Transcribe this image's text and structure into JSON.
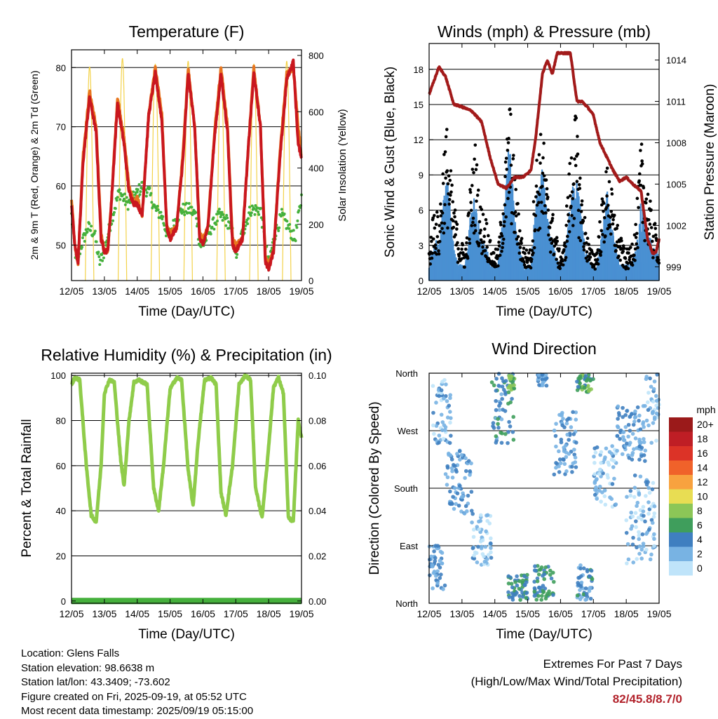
{
  "time_ticks": [
    "12/05",
    "13/05",
    "14/05",
    "15/05",
    "16/05",
    "17/05",
    "18/05",
    "19/05"
  ],
  "colors": {
    "temp_2m": "#e8761f",
    "temp_9m": "#c9171e",
    "dewpoint": "#45b03c",
    "solar": "#f3d24a",
    "wind": "#4a90d2",
    "gust": "#000000",
    "pressure": "#a21a1a",
    "humidity": "#8fcc4a",
    "precip": "#45b03c",
    "extremes_value": "#b2222b"
  },
  "chart_data": [
    {
      "id": "temperature",
      "type": "line",
      "title": "Temperature (F)",
      "xlabel": "Time (Day/UTC)",
      "ylabel": "2m & 9m T (Red, Orange) & 2m Td (Green)",
      "ylabel_right": "Solar Insolation (Yellow)",
      "ylim": [
        44,
        83
      ],
      "yticks": [
        50,
        60,
        70,
        80
      ],
      "ylim_right": [
        0,
        820
      ],
      "yticks_right": [
        0,
        200,
        400,
        600,
        800
      ],
      "grid": true,
      "series": [
        {
          "axis": "left",
          "x": [
            0,
            0.1,
            0.2,
            0.35,
            0.55,
            0.75,
            0.9,
            1,
            1.1,
            1.2,
            1.4,
            1.6,
            1.75,
            1.9,
            2,
            2.15,
            2.35,
            2.55,
            2.75,
            2.9,
            3,
            3.2,
            3.4,
            3.55,
            3.75,
            3.9,
            4,
            4.15,
            4.35,
            4.55,
            4.75,
            4.9,
            5,
            5.2,
            5.4,
            5.55,
            5.75,
            5.9,
            6,
            6.15,
            6.35,
            6.55,
            6.75,
            6.9,
            7
          ],
          "values": [
            58,
            50,
            47,
            65,
            76,
            70,
            52,
            49,
            49,
            56,
            75,
            68,
            60,
            57,
            58,
            55,
            72,
            80,
            72,
            53,
            52,
            53,
            66,
            80,
            70,
            52,
            51,
            53,
            69,
            80,
            70,
            51,
            50,
            51,
            68,
            80,
            70,
            48,
            47,
            49,
            66,
            79,
            80,
            70,
            65
          ]
        },
        {
          "axis": "left",
          "x": [
            0,
            0.1,
            0.2,
            0.35,
            0.55,
            0.75,
            0.9,
            1,
            1.1,
            1.2,
            1.4,
            1.6,
            1.75,
            1.9,
            2,
            2.15,
            2.35,
            2.55,
            2.75,
            2.9,
            3,
            3.2,
            3.4,
            3.55,
            3.75,
            3.9,
            4,
            4.15,
            4.35,
            4.55,
            4.75,
            4.9,
            5,
            5.2,
            5.4,
            5.55,
            5.75,
            5.9,
            6,
            6.15,
            6.35,
            6.55,
            6.75,
            6.9,
            7
          ],
          "values": [
            57,
            50,
            47,
            64,
            75,
            69,
            51,
            49,
            49,
            56,
            74,
            67,
            59,
            57,
            57,
            55,
            72,
            79,
            71,
            53,
            51,
            53,
            65,
            79,
            70,
            51,
            50,
            53,
            68,
            79,
            69,
            50,
            49,
            51,
            68,
            79,
            70,
            47,
            46,
            49,
            65,
            78,
            81,
            67,
            65
          ]
        },
        {
          "axis": "left",
          "x": [
            0,
            0.15,
            0.3,
            0.5,
            0.7,
            0.85,
            1,
            1.2,
            1.45,
            1.7,
            1.9,
            2.15,
            2.35,
            2.55,
            2.75,
            2.9,
            3,
            3.15,
            3.35,
            3.6,
            3.8,
            3.9,
            4,
            4.25,
            4.5,
            4.75,
            4.9,
            5,
            5.2,
            5.45,
            5.75,
            5.9,
            6,
            6.2,
            6.4,
            6.6,
            6.8,
            7
          ],
          "values": [
            55,
            47,
            50,
            53,
            52,
            47,
            49,
            54,
            59,
            57,
            58,
            60,
            59,
            56,
            55,
            52,
            52,
            54,
            56,
            56,
            55,
            50,
            50,
            53,
            55,
            54,
            52,
            48,
            52,
            56,
            56,
            50,
            47,
            52,
            55,
            53,
            51,
            58
          ]
        },
        {
          "axis": "right",
          "x": [
            0.45,
            0.55,
            0.65,
            1.45,
            1.55,
            1.65,
            2.45,
            2.55,
            2.65,
            3.45,
            3.55,
            3.65,
            4.45,
            4.55,
            4.65,
            5.45,
            5.55,
            5.65,
            6.45,
            6.55,
            6.65
          ],
          "values": [
            0,
            760,
            0,
            0,
            790,
            0,
            0,
            770,
            0,
            0,
            780,
            0,
            0,
            760,
            0,
            0,
            770,
            0,
            0,
            780,
            0
          ]
        }
      ]
    },
    {
      "id": "winds",
      "type": "line",
      "title": "Winds (mph) & Pressure (mb)",
      "xlabel": "Time (Day/UTC)",
      "ylabel": "Sonic Wind & Gust (Blue, Black)",
      "ylabel_right": "Station Pressure (Maroon)",
      "ylim": [
        0,
        20.2
      ],
      "yticks": [
        0,
        3,
        6,
        9,
        12,
        15,
        18
      ],
      "ylim_right": [
        998,
        1015.2
      ],
      "yticks_right": [
        999,
        1002,
        1005,
        1008,
        1011,
        1014
      ],
      "grid": true,
      "series": [
        {
          "axis": "left",
          "x": [
            0,
            0.15,
            0.3,
            0.45,
            0.55,
            0.7,
            0.9,
            1.1,
            1.25,
            1.4,
            1.55,
            1.75,
            1.9,
            2.1,
            2.3,
            2.45,
            2.6,
            2.75,
            2.9,
            3.1,
            3.25,
            3.45,
            3.6,
            3.8,
            3.95,
            4.1,
            4.25,
            4.45,
            4.6,
            4.75,
            4.9,
            5.1,
            5.25,
            5.45,
            5.6,
            5.8,
            5.95,
            6.1,
            6.3,
            6.45,
            6.6,
            6.8,
            7
          ],
          "values": [
            1,
            3,
            2,
            6,
            7,
            3,
            1,
            1,
            4,
            6,
            3,
            2,
            1,
            1,
            5,
            9,
            4,
            2,
            1,
            1,
            5,
            7,
            4,
            2,
            1,
            1,
            4,
            7,
            5,
            2,
            1,
            1,
            3,
            6,
            3,
            1,
            1,
            1,
            2,
            5,
            4,
            2,
            2
          ]
        },
        {
          "axis": "left",
          "x": [
            0,
            0.15,
            0.3,
            0.45,
            0.55,
            0.7,
            0.9,
            1.1,
            1.25,
            1.4,
            1.55,
            1.75,
            1.9,
            2.1,
            2.3,
            2.45,
            2.6,
            2.75,
            2.9,
            3.1,
            3.25,
            3.45,
            3.6,
            3.8,
            3.95,
            4.1,
            4.25,
            4.45,
            4.6,
            4.75,
            4.9,
            5.1,
            5.25,
            5.45,
            5.6,
            5.8,
            5.95,
            6.1,
            6.3,
            6.45,
            6.6,
            6.8,
            7
          ],
          "values": [
            2,
            5,
            4,
            9,
            10,
            6,
            3,
            2,
            6,
            9,
            5,
            4,
            2,
            2,
            7,
            12,
            7,
            4,
            2,
            2,
            8,
            10,
            6,
            4,
            2,
            2,
            7,
            11,
            7,
            4,
            2,
            2,
            5,
            8,
            5,
            3,
            2,
            2,
            4,
            9,
            7,
            4,
            3
          ]
        },
        {
          "axis": "right",
          "x": [
            0,
            0.15,
            0.3,
            0.5,
            0.75,
            1,
            1.3,
            1.6,
            1.85,
            2.1,
            2.35,
            2.6,
            2.85,
            3.1,
            3.25,
            3.45,
            3.6,
            3.75,
            3.9,
            4.1,
            4.3,
            4.5,
            4.65,
            4.85,
            5,
            5.2,
            5.4,
            5.6,
            5.8,
            6.0,
            6.2,
            6.45,
            6.65,
            6.8,
            6.9,
            7
          ],
          "values": [
            1011.5,
            1012.5,
            1013.5,
            1012.8,
            1010.8,
            1010.6,
            1010.3,
            1009.5,
            1007,
            1005,
            1004.7,
            1005.5,
            1005.5,
            1006,
            1008.5,
            1013,
            1014,
            1013,
            1014.5,
            1014.5,
            1014.5,
            1011,
            1011,
            1010.5,
            1010,
            1008,
            1007,
            1006,
            1005.2,
            1005.5,
            1005,
            1004.5,
            1001,
            1000,
            1000,
            1001
          ]
        }
      ]
    },
    {
      "id": "humidity",
      "type": "line",
      "title": "Relative Humidity (%) & Precipitation (in)",
      "xlabel": "Time (Day/UTC)",
      "ylabel": "Percent & Total Rainfall",
      "ylim": [
        -1,
        101
      ],
      "yticks": [
        0,
        20,
        40,
        60,
        80,
        100
      ],
      "ylim_right": [
        -0.001,
        0.101
      ],
      "yticks_right": [
        "0.00",
        "0.02",
        "0.04",
        "0.06",
        "0.08",
        "0.10"
      ],
      "grid": true,
      "series": [
        {
          "axis": "left",
          "x": [
            0,
            0.1,
            0.25,
            0.45,
            0.6,
            0.75,
            0.9,
            1,
            1.15,
            1.3,
            1.5,
            1.6,
            1.75,
            1.9,
            2.05,
            2.3,
            2.5,
            2.65,
            2.8,
            3,
            3.2,
            3.35,
            3.55,
            3.7,
            3.85,
            4.05,
            4.25,
            4.4,
            4.55,
            4.7,
            4.9,
            5.1,
            5.3,
            5.45,
            5.6,
            5.8,
            5.95,
            6.15,
            6.3,
            6.45,
            6.6,
            6.75,
            6.9,
            7
          ],
          "values": [
            96,
            99,
            98,
            60,
            38,
            35,
            60,
            92,
            98,
            97,
            62,
            51,
            80,
            97,
            98,
            96,
            50,
            40,
            60,
            94,
            99,
            98,
            58,
            42,
            70,
            98,
            99,
            96,
            48,
            38,
            60,
            96,
            100,
            98,
            50,
            37,
            60,
            95,
            99,
            92,
            37,
            35,
            80,
            72
          ]
        },
        {
          "axis": "right",
          "x": [
            0,
            7
          ],
          "values": [
            0,
            0
          ]
        }
      ]
    },
    {
      "id": "wind_direction",
      "type": "scatter",
      "title": "Wind Direction",
      "xlabel": "Time (Day/UTC)",
      "ylabel": "Direction (Colored By Speed)",
      "yticks": [
        "North",
        "East",
        "South",
        "West",
        "North"
      ],
      "ylim_deg": [
        0,
        360
      ],
      "grid": true,
      "legend": {
        "title": "mph",
        "labels": [
          "20+",
          "18",
          "16",
          "14",
          "12",
          "10",
          "8",
          "6",
          "4",
          "2",
          "0"
        ],
        "colors": [
          "#9b1a1a",
          "#bf1e25",
          "#dc3327",
          "#f0622a",
          "#f8a23f",
          "#e8dd53",
          "#8cc657",
          "#3f9e5c",
          "#3f7fc0",
          "#78b3e3",
          "#bfe4fa"
        ],
        "placement": "right"
      },
      "clusters": [
        {
          "day_from": 0.0,
          "day_to": 0.5,
          "deg_from": 20,
          "deg_to": 90,
          "speed": 3
        },
        {
          "day_from": 0.1,
          "day_to": 0.7,
          "deg_from": 250,
          "deg_to": 350,
          "speed": 2
        },
        {
          "day_from": 0.5,
          "day_to": 1.3,
          "deg_from": 140,
          "deg_to": 240,
          "speed": 3
        },
        {
          "day_from": 1.3,
          "day_to": 1.9,
          "deg_from": 60,
          "deg_to": 140,
          "speed": 2
        },
        {
          "day_from": 1.9,
          "day_to": 2.6,
          "deg_from": 250,
          "deg_to": 360,
          "speed": 4
        },
        {
          "day_from": 2.4,
          "day_to": 2.6,
          "deg_from": 330,
          "deg_to": 358,
          "speed": 7
        },
        {
          "day_from": 2.4,
          "day_to": 3.0,
          "deg_from": 5,
          "deg_to": 45,
          "speed": 5
        },
        {
          "day_from": 3.2,
          "day_to": 3.8,
          "deg_from": 5,
          "deg_to": 60,
          "speed": 5
        },
        {
          "day_from": 3.3,
          "day_to": 3.6,
          "deg_from": 340,
          "deg_to": 358,
          "speed": 3
        },
        {
          "day_from": 3.8,
          "day_to": 4.5,
          "deg_from": 200,
          "deg_to": 300,
          "speed": 3
        },
        {
          "day_from": 4.5,
          "day_to": 5.0,
          "deg_from": 330,
          "deg_to": 358,
          "speed": 6
        },
        {
          "day_from": 4.5,
          "day_to": 5.0,
          "deg_from": 5,
          "deg_to": 60,
          "speed": 4
        },
        {
          "day_from": 5.0,
          "day_to": 5.7,
          "deg_from": 150,
          "deg_to": 250,
          "speed": 2
        },
        {
          "day_from": 5.7,
          "day_to": 6.6,
          "deg_from": 220,
          "deg_to": 310,
          "speed": 3
        },
        {
          "day_from": 6.0,
          "day_to": 6.9,
          "deg_from": 60,
          "deg_to": 200,
          "speed": 2
        },
        {
          "day_from": 6.6,
          "day_to": 7.0,
          "deg_from": 250,
          "deg_to": 358,
          "speed": 2
        }
      ]
    }
  ],
  "info": {
    "location": "Location: Glens Falls",
    "elevation": "Station elevation: 98.6638 m",
    "latlon": "Station lat/lon: 43.3409; -73.602",
    "created": "Figure created on Fri, 2025-09-19, at 05:52 UTC",
    "recent": "Most recent data timestamp: 2025/09/19 05:15:00"
  },
  "extremes": {
    "line1": "Extremes For Past 7 Days",
    "line2": "(High/Low/Max Wind/Total Precipitation)",
    "value": "82/45.8/8.7/0"
  }
}
